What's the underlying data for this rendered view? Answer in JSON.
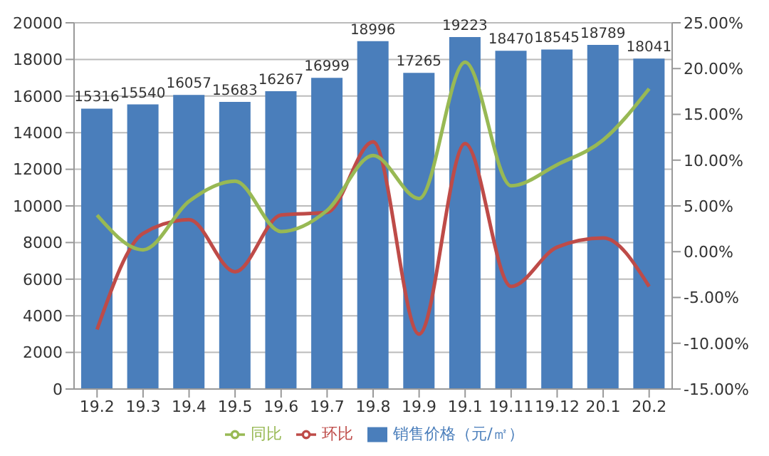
{
  "chart_data": {
    "type": "bar",
    "categories": [
      "19.2",
      "19.3",
      "19.4",
      "19.5",
      "19.6",
      "19.7",
      "19.8",
      "19.9",
      "19.1",
      "19.11",
      "19.12",
      "20.1",
      "20.2"
    ],
    "series": [
      {
        "name": "销售价格（元/㎡）",
        "color": "#4a7ebb",
        "values": [
          15316,
          15540,
          16057,
          15683,
          16267,
          16999,
          18996,
          17265,
          19223,
          18470,
          18545,
          18789,
          18041
        ],
        "value_labels": [
          "15316",
          "15540",
          "16057",
          "15683",
          "16267",
          "16999",
          "18996",
          "17265",
          "19223",
          "18470",
          "18545",
          "18789",
          "18041"
        ]
      },
      {
        "name": "环比",
        "type": "line",
        "axis": "y2",
        "color": "#be4b48",
        "values": [
          -8.5,
          2.0,
          3.5,
          -2.2,
          4.0,
          4.3,
          12.0,
          -9.0,
          11.8,
          -3.8,
          0.5,
          1.5,
          -3.8
        ]
      },
      {
        "name": "同比",
        "type": "line",
        "axis": "y2",
        "color": "#98b954",
        "values": [
          4.0,
          0.2,
          5.5,
          7.7,
          2.2,
          4.5,
          10.5,
          5.8,
          20.7,
          7.2,
          9.5,
          12.2,
          17.8
        ]
      }
    ],
    "ylim": [
      0,
      20000
    ],
    "yticks": [
      0,
      2000,
      4000,
      6000,
      8000,
      10000,
      12000,
      14000,
      16000,
      18000,
      20000
    ],
    "y2lim": [
      -15,
      25
    ],
    "y2ticks": [
      {
        "value": -15,
        "label": "-15.00%"
      },
      {
        "value": -10,
        "label": "-10.00%"
      },
      {
        "value": -5,
        "label": "-5.00%"
      },
      {
        "value": 0,
        "label": "0.00%"
      },
      {
        "value": 5,
        "label": "5.00%"
      },
      {
        "value": 10,
        "label": "10.00%"
      },
      {
        "value": 15,
        "label": "15.00%"
      },
      {
        "value": 20,
        "label": "20.00%"
      },
      {
        "value": 25,
        "label": "25.00%"
      }
    ],
    "grid": "y",
    "legend": "bottom",
    "marker": "none"
  }
}
